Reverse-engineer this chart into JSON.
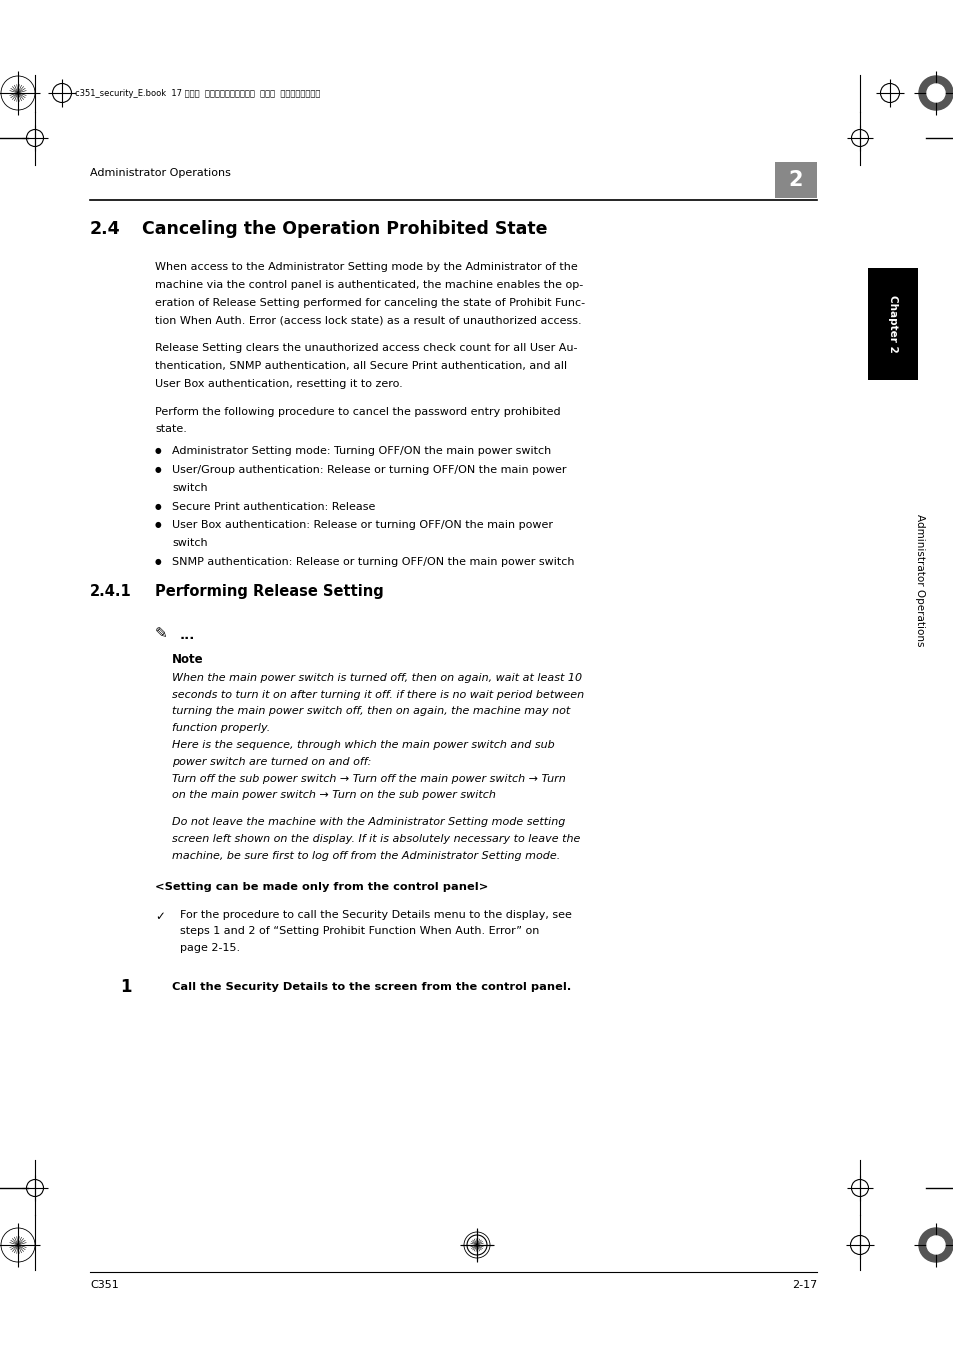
{
  "bg_color": "#ffffff",
  "page_width": 9.54,
  "page_height": 13.5,
  "dpi": 100,
  "top_bar_text": "c351_security_E.book  17 ページ  ２００７年４月１１日  水曜日  午前１０時１９分",
  "header_left": "Administrator Operations",
  "header_chapter": "2",
  "section_title": "2.4",
  "section_title_text": "Canceling the Operation Prohibited State",
  "body_para1_lines": [
    "When access to the Administrator Setting mode by the Administrator of the",
    "machine via the control panel is authenticated, the machine enables the op-",
    "eration of Release Setting performed for canceling the state of Prohibit Func-",
    "tion When Auth. Error (access lock state) as a result of unauthorized access."
  ],
  "body_para2_lines": [
    "Release Setting clears the unauthorized access check count for all User Au-",
    "thentication, SNMP authentication, all Secure Print authentication, and all",
    "User Box authentication, resetting it to zero."
  ],
  "body_para3_lines": [
    "Perform the following procedure to cancel the password entry prohibited",
    "state."
  ],
  "bullets": [
    [
      "Administrator Setting mode: Turning OFF/ON the main power switch"
    ],
    [
      "User/Group authentication: Release or turning OFF/ON the main power",
      "switch"
    ],
    [
      "Secure Print authentication: Release"
    ],
    [
      "User Box authentication: Release or turning OFF/ON the main power",
      "switch"
    ],
    [
      "SNMP authentication: Release or turning OFF/ON the main power switch"
    ]
  ],
  "subsection_num": "2.4.1",
  "subsection_text": "Performing Release Setting",
  "note_label": "Note",
  "note_lines1": [
    "When the main power switch is turned off, then on again, wait at least 10",
    "seconds to turn it on after turning it off. if there is no wait period between",
    "turning the main power switch off, then on again, the machine may not",
    "function properly.",
    "Here is the sequence, through which the main power switch and sub",
    "power switch are turned on and off:",
    "Turn off the sub power switch → Turn off the main power switch → Turn",
    "on the main power switch → Turn on the sub power switch"
  ],
  "note_lines2": [
    "Do not leave the machine with the Administrator Setting mode setting",
    "screen left shown on the display. If it is absolutely necessary to leave the",
    "machine, be sure first to log off from the Administrator Setting mode."
  ],
  "control_panel_heading": "<Setting can be made only from the control panel>",
  "check_lines": [
    "For the procedure to call the Security Details menu to the display, see",
    "steps 1 and 2 of “Setting Prohibit Function When Auth. Error” on",
    "page 2-15."
  ],
  "step1": "Call the Security Details to the screen from the control panel.",
  "footer_left": "C351",
  "footer_right": "2-17",
  "sidebar_chapter": "Chapter 2",
  "sidebar_ops": "Administrator Operations",
  "sidebar_box_color": "#000000",
  "sidebar_text_color": "#ffffff",
  "chapter_gray": "#888888"
}
